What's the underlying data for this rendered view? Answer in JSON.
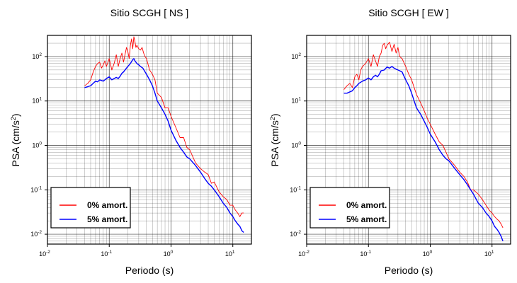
{
  "chart_data": [
    {
      "type": "line",
      "title": "Sitio SCGH [ NS ]",
      "xlabel": "Periodo (s)",
      "ylabel": "PSA (cm/s²)",
      "ylabel_base": "PSA (cm/s",
      "ylabel_exp": "2",
      "ylabel_end": ")",
      "xscale": "log",
      "yscale": "log",
      "xlim": [
        0.01,
        20
      ],
      "ylim": [
        0.006,
        300
      ],
      "grid": true,
      "legend_position": "bottom-left",
      "x_ticks": [
        {
          "value": 0.01,
          "base": "10",
          "exp": "-2"
        },
        {
          "value": 0.1,
          "base": "10",
          "exp": "-1"
        },
        {
          "value": 1,
          "base": "10",
          "exp": "0"
        },
        {
          "value": 10,
          "base": "10",
          "exp": "1"
        }
      ],
      "y_ticks": [
        {
          "value": 0.01,
          "base": "10",
          "exp": "-2"
        },
        {
          "value": 0.1,
          "base": "10",
          "exp": "-1"
        },
        {
          "value": 1,
          "base": "10",
          "exp": "0"
        },
        {
          "value": 10,
          "base": "10",
          "exp": "1"
        },
        {
          "value": 100,
          "base": "10",
          "exp": "2"
        }
      ],
      "series": [
        {
          "name": "0% amort.",
          "color": "#ff0000",
          "x": [
            0.04,
            0.045,
            0.05,
            0.055,
            0.06,
            0.065,
            0.07,
            0.075,
            0.08,
            0.085,
            0.09,
            0.1,
            0.11,
            0.12,
            0.13,
            0.14,
            0.15,
            0.16,
            0.17,
            0.18,
            0.19,
            0.2,
            0.21,
            0.22,
            0.23,
            0.24,
            0.25,
            0.26,
            0.27,
            0.28,
            0.3,
            0.32,
            0.34,
            0.36,
            0.38,
            0.4,
            0.45,
            0.5,
            0.55,
            0.6,
            0.7,
            0.8,
            0.9,
            1.0,
            1.2,
            1.4,
            1.6,
            1.8,
            2.0,
            2.5,
            3.0,
            3.5,
            4.0,
            4.5,
            5.0,
            6.0,
            7.0,
            8.0,
            9.0,
            10.0,
            11.0,
            12.0,
            13.0,
            14.0,
            15.0
          ],
          "y": [
            22,
            25,
            30,
            45,
            60,
            70,
            75,
            55,
            65,
            80,
            60,
            90,
            50,
            70,
            110,
            60,
            90,
            120,
            75,
            110,
            160,
            130,
            90,
            180,
            250,
            150,
            280,
            220,
            160,
            180,
            150,
            140,
            160,
            120,
            100,
            90,
            50,
            40,
            30,
            15,
            12,
            7,
            7,
            4.5,
            2.5,
            1.5,
            1.5,
            0.9,
            0.8,
            0.4,
            0.3,
            0.25,
            0.22,
            0.14,
            0.15,
            0.09,
            0.07,
            0.06,
            0.045,
            0.045,
            0.035,
            0.03,
            0.025,
            0.03,
            0.03
          ]
        },
        {
          "name": "5% amort.",
          "color": "#0000ff",
          "x": [
            0.04,
            0.045,
            0.05,
            0.055,
            0.06,
            0.065,
            0.07,
            0.08,
            0.09,
            0.1,
            0.11,
            0.12,
            0.13,
            0.14,
            0.15,
            0.16,
            0.17,
            0.18,
            0.19,
            0.2,
            0.22,
            0.24,
            0.25,
            0.26,
            0.28,
            0.3,
            0.32,
            0.35,
            0.4,
            0.45,
            0.5,
            0.55,
            0.6,
            0.7,
            0.8,
            0.9,
            1.0,
            1.2,
            1.4,
            1.6,
            1.8,
            2.0,
            2.5,
            3.0,
            3.5,
            4.0,
            4.5,
            5.0,
            6.0,
            7.0,
            8.0,
            9.0,
            10.0,
            11.0,
            12.0,
            13.0,
            14.0,
            15.0
          ],
          "y": [
            20,
            21,
            22,
            25,
            28,
            27,
            30,
            28,
            32,
            35,
            30,
            32,
            34,
            32,
            36,
            42,
            45,
            50,
            55,
            60,
            70,
            85,
            90,
            80,
            70,
            65,
            60,
            55,
            40,
            30,
            22,
            15,
            10,
            7,
            5,
            3.5,
            2.2,
            1.3,
            0.9,
            0.7,
            0.55,
            0.5,
            0.35,
            0.25,
            0.18,
            0.14,
            0.12,
            0.1,
            0.07,
            0.05,
            0.04,
            0.03,
            0.025,
            0.02,
            0.017,
            0.015,
            0.012,
            0.011
          ]
        }
      ]
    },
    {
      "type": "line",
      "title": "Sitio SCGH [ EW ]",
      "xlabel": "Periodo (s)",
      "ylabel": "PSA (cm/s²)",
      "ylabel_base": "PSA (cm/s",
      "ylabel_exp": "2",
      "ylabel_end": ")",
      "xscale": "log",
      "yscale": "log",
      "xlim": [
        0.01,
        20
      ],
      "ylim": [
        0.006,
        300
      ],
      "grid": true,
      "legend_position": "bottom-left",
      "x_ticks": [
        {
          "value": 0.01,
          "base": "10",
          "exp": "-2"
        },
        {
          "value": 0.1,
          "base": "10",
          "exp": "-1"
        },
        {
          "value": 1,
          "base": "10",
          "exp": "0"
        },
        {
          "value": 10,
          "base": "10",
          "exp": "1"
        }
      ],
      "y_ticks": [
        {
          "value": 0.01,
          "base": "10",
          "exp": "-2"
        },
        {
          "value": 0.1,
          "base": "10",
          "exp": "-1"
        },
        {
          "value": 1,
          "base": "10",
          "exp": "0"
        },
        {
          "value": 10,
          "base": "10",
          "exp": "1"
        },
        {
          "value": 100,
          "base": "10",
          "exp": "2"
        }
      ],
      "series": [
        {
          "name": "0% amort.",
          "color": "#ff0000",
          "x": [
            0.04,
            0.045,
            0.05,
            0.055,
            0.06,
            0.065,
            0.07,
            0.075,
            0.08,
            0.09,
            0.1,
            0.11,
            0.12,
            0.13,
            0.14,
            0.15,
            0.16,
            0.17,
            0.18,
            0.19,
            0.2,
            0.22,
            0.24,
            0.26,
            0.28,
            0.3,
            0.32,
            0.35,
            0.4,
            0.45,
            0.5,
            0.55,
            0.6,
            0.7,
            0.8,
            0.9,
            1.0,
            1.2,
            1.4,
            1.6,
            1.8,
            2.0,
            2.5,
            3.0,
            3.5,
            4.0,
            4.5,
            5.0,
            6.0,
            7.0,
            8.0,
            9.0,
            10.0,
            11.0,
            12.0,
            13.0,
            14.0,
            15.0
          ],
          "y": [
            18,
            22,
            25,
            20,
            35,
            40,
            30,
            50,
            60,
            70,
            90,
            60,
            110,
            80,
            60,
            100,
            120,
            180,
            200,
            150,
            180,
            210,
            130,
            190,
            120,
            160,
            100,
            90,
            60,
            40,
            30,
            20,
            14,
            9,
            6,
            4,
            3,
            1.8,
            1.2,
            1.0,
            0.7,
            0.5,
            0.35,
            0.25,
            0.2,
            0.15,
            0.1,
            0.1,
            0.08,
            0.06,
            0.045,
            0.035,
            0.03,
            0.025,
            0.022,
            0.02,
            0.017,
            0.014
          ]
        },
        {
          "name": "5% amort.",
          "color": "#0000ff",
          "x": [
            0.04,
            0.045,
            0.05,
            0.055,
            0.06,
            0.065,
            0.07,
            0.08,
            0.09,
            0.1,
            0.11,
            0.12,
            0.13,
            0.14,
            0.15,
            0.16,
            0.18,
            0.2,
            0.22,
            0.24,
            0.26,
            0.28,
            0.3,
            0.32,
            0.35,
            0.4,
            0.45,
            0.5,
            0.55,
            0.6,
            0.7,
            0.8,
            0.9,
            1.0,
            1.2,
            1.4,
            1.6,
            1.8,
            2.0,
            2.5,
            3.0,
            3.5,
            4.0,
            4.5,
            5.0,
            6.0,
            7.0,
            8.0,
            9.0,
            10.0,
            11.0,
            12.0,
            13.0,
            14.0,
            15.0
          ],
          "y": [
            15,
            15,
            16,
            17,
            20,
            22,
            25,
            28,
            30,
            33,
            30,
            35,
            38,
            35,
            40,
            48,
            50,
            58,
            55,
            60,
            55,
            52,
            50,
            48,
            45,
            30,
            22,
            15,
            10,
            7,
            5,
            3.5,
            2.5,
            1.8,
            1.2,
            0.8,
            0.6,
            0.5,
            0.45,
            0.3,
            0.22,
            0.17,
            0.13,
            0.1,
            0.08,
            0.05,
            0.04,
            0.03,
            0.025,
            0.02,
            0.015,
            0.013,
            0.011,
            0.009,
            0.007
          ]
        }
      ]
    }
  ]
}
